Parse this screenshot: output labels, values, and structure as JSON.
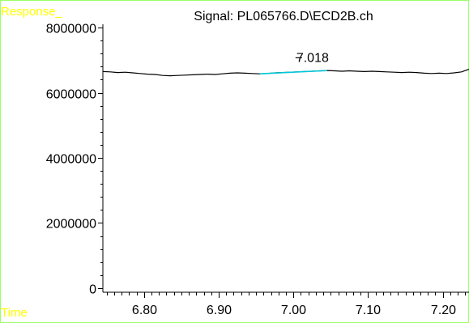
{
  "window": {
    "response_label": "Response_",
    "time_label": "Time",
    "title": "Signal: PL065766.D\\ECD2B.ch"
  },
  "colors": {
    "frame": "#99ff66",
    "corner_labels": "#ffff00",
    "signal": "#000000",
    "peak_baseline": "#00c8d8"
  },
  "chart_data": {
    "type": "line",
    "title": "Signal: PL065766.D\\ECD2B.ch",
    "xlabel": "Time",
    "ylabel": "Response_",
    "xlim": [
      6.745,
      7.235
    ],
    "ylim": [
      -100000,
      8100000
    ],
    "x_ticks": [
      "6.80",
      "6.90",
      "7.00",
      "7.10",
      "7.20"
    ],
    "x_tick_values": [
      6.8,
      6.9,
      7.0,
      7.1,
      7.2
    ],
    "x_minor_step": 0.01,
    "y_ticks": [
      "0",
      "2000000",
      "4000000",
      "6000000",
      "8000000"
    ],
    "y_tick_values": [
      0,
      2000000,
      4000000,
      6000000,
      8000000
    ],
    "y_minor_step": 400000,
    "series": [
      {
        "x": [
          6.745,
          6.755,
          6.765,
          6.775,
          6.785,
          6.795,
          6.805,
          6.815,
          6.825,
          6.835,
          6.845,
          6.855,
          6.865,
          6.875,
          6.885,
          6.895,
          6.905,
          6.915,
          6.925,
          6.935,
          6.945,
          6.955,
          6.965,
          6.975,
          6.985,
          6.995,
          7.005,
          7.015,
          7.025,
          7.035,
          7.045,
          7.055,
          7.065,
          7.075,
          7.085,
          7.095,
          7.105,
          7.115,
          7.125,
          7.135,
          7.145,
          7.155,
          7.165,
          7.175,
          7.185,
          7.195,
          7.205,
          7.215,
          7.225,
          7.235
        ],
        "values": [
          6650000,
          6640000,
          6620000,
          6630000,
          6610000,
          6590000,
          6570000,
          6560000,
          6530000,
          6520000,
          6530000,
          6540000,
          6550000,
          6560000,
          6570000,
          6560000,
          6580000,
          6600000,
          6610000,
          6600000,
          6590000,
          6580000,
          6590000,
          6610000,
          6620000,
          6630000,
          6640000,
          6650000,
          6660000,
          6670000,
          6680000,
          6670000,
          6660000,
          6670000,
          6660000,
          6650000,
          6660000,
          6650000,
          6640000,
          6630000,
          6620000,
          6630000,
          6620000,
          6600000,
          6590000,
          6600000,
          6590000,
          6610000,
          6640000,
          6720000
        ]
      }
    ],
    "peaks": [
      {
        "label": "7.018",
        "rt": 7.018,
        "baseline_x": [
          6.955,
          7.045
        ],
        "baseline_y": [
          6580000,
          6680000
        ]
      }
    ]
  }
}
